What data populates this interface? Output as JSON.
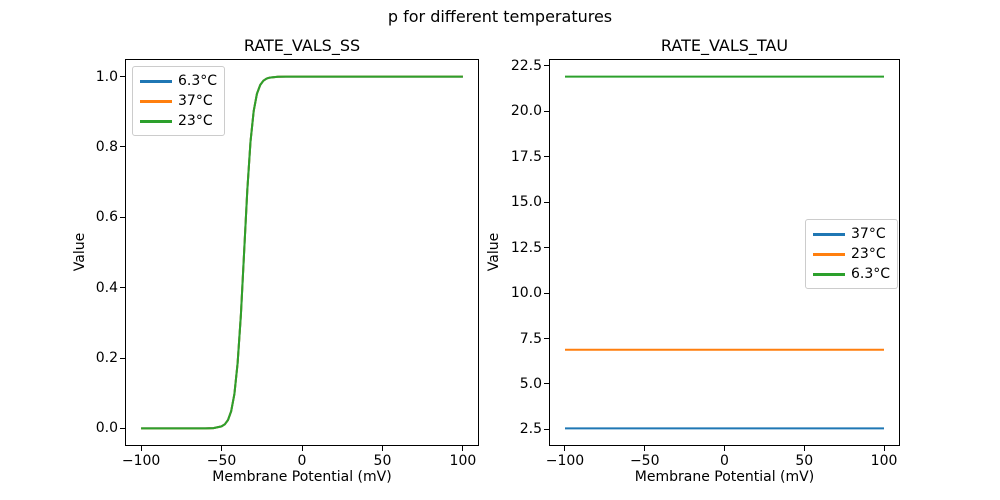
{
  "figure": {
    "suptitle": "p for different temperatures",
    "background_color": "#ffffff",
    "text_color": "#000000"
  },
  "chart_data": [
    {
      "id": "rate_vals_ss",
      "type": "line",
      "title": "RATE_VALS_SS",
      "xlabel": "Membrane Potential (mV)",
      "ylabel": "Value",
      "xlim": [
        -110,
        110
      ],
      "ylim": [
        -0.05,
        1.05
      ],
      "grid": false,
      "xticks": [
        -100,
        -50,
        0,
        50,
        100
      ],
      "xtick_labels": [
        "−100",
        "−50",
        "0",
        "50",
        "100"
      ],
      "yticks": [
        0.0,
        0.2,
        0.4,
        0.6,
        0.8,
        1.0
      ],
      "ytick_labels": [
        "0.0",
        "0.2",
        "0.4",
        "0.6",
        "0.8",
        "1.0"
      ],
      "legend": {
        "position": "upper left",
        "entries": [
          {
            "label": "6.3°C",
            "color": "#1f77b4"
          },
          {
            "label": "37°C",
            "color": "#ff7f0e"
          },
          {
            "label": "23°C",
            "color": "#2ca02c"
          }
        ]
      },
      "series": [
        {
          "name": "6.3°C",
          "color": "#1f77b4",
          "x": [
            -100,
            -90,
            -80,
            -70,
            -60,
            -55,
            -50,
            -48,
            -46,
            -44,
            -42,
            -40,
            -38,
            -36,
            -34,
            -32,
            -30,
            -28,
            -26,
            -24,
            -22,
            -20,
            -15,
            -10,
            -5,
            0,
            20,
            40,
            60,
            80,
            100
          ],
          "y": [
            0,
            0,
            0,
            0,
            0.0001,
            0.0009,
            0.0056,
            0.0116,
            0.024,
            0.0491,
            0.0978,
            0.1852,
            0.3229,
            0.5,
            0.6771,
            0.8148,
            0.9022,
            0.9509,
            0.976,
            0.9884,
            0.9943,
            0.9972,
            0.9996,
            0.9999,
            1,
            1,
            1,
            1,
            1,
            1,
            1
          ]
        },
        {
          "name": "37°C",
          "color": "#ff7f0e",
          "x": [
            -100,
            -90,
            -80,
            -70,
            -60,
            -55,
            -50,
            -48,
            -46,
            -44,
            -42,
            -40,
            -38,
            -36,
            -34,
            -32,
            -30,
            -28,
            -26,
            -24,
            -22,
            -20,
            -15,
            -10,
            -5,
            0,
            20,
            40,
            60,
            80,
            100
          ],
          "y": [
            0,
            0,
            0,
            0,
            0.0001,
            0.0009,
            0.0056,
            0.0116,
            0.024,
            0.0491,
            0.0978,
            0.1852,
            0.3229,
            0.5,
            0.6771,
            0.8148,
            0.9022,
            0.9509,
            0.976,
            0.9884,
            0.9943,
            0.9972,
            0.9996,
            0.9999,
            1,
            1,
            1,
            1,
            1,
            1,
            1
          ]
        },
        {
          "name": "23°C",
          "color": "#2ca02c",
          "x": [
            -100,
            -90,
            -80,
            -70,
            -60,
            -55,
            -50,
            -48,
            -46,
            -44,
            -42,
            -40,
            -38,
            -36,
            -34,
            -32,
            -30,
            -28,
            -26,
            -24,
            -22,
            -20,
            -15,
            -10,
            -5,
            0,
            20,
            40,
            60,
            80,
            100
          ],
          "y": [
            0,
            0,
            0,
            0,
            0.0001,
            0.0009,
            0.0056,
            0.0116,
            0.024,
            0.0491,
            0.0978,
            0.1852,
            0.3229,
            0.5,
            0.6771,
            0.8148,
            0.9022,
            0.9509,
            0.976,
            0.9884,
            0.9943,
            0.9972,
            0.9996,
            0.9999,
            1,
            1,
            1,
            1,
            1,
            1,
            1
          ]
        }
      ]
    },
    {
      "id": "rate_vals_tau",
      "type": "line",
      "title": "RATE_VALS_TAU",
      "xlabel": "Membrane Potential (mV)",
      "ylabel": "Value",
      "xlim": [
        -110,
        110
      ],
      "ylim": [
        1.59,
        22.87
      ],
      "grid": false,
      "xticks": [
        -100,
        -50,
        0,
        50,
        100
      ],
      "xtick_labels": [
        "−100",
        "−50",
        "0",
        "50",
        "100"
      ],
      "yticks": [
        2.5,
        5.0,
        7.5,
        10.0,
        12.5,
        15.0,
        17.5,
        20.0,
        22.5
      ],
      "ytick_labels": [
        "2.5",
        "5.0",
        "7.5",
        "10.0",
        "12.5",
        "15.0",
        "17.5",
        "20.0",
        "22.5"
      ],
      "legend": {
        "position": "center right",
        "entries": [
          {
            "label": "37°C",
            "color": "#1f77b4"
          },
          {
            "label": "23°C",
            "color": "#ff7f0e"
          },
          {
            "label": "6.3°C",
            "color": "#2ca02c"
          }
        ]
      },
      "series": [
        {
          "name": "37°C",
          "color": "#1f77b4",
          "x": [
            -100,
            100
          ],
          "y": [
            2.56,
            2.56
          ]
        },
        {
          "name": "23°C",
          "color": "#ff7f0e",
          "x": [
            -100,
            100
          ],
          "y": [
            6.88,
            6.88
          ]
        },
        {
          "name": "6.3°C",
          "color": "#2ca02c",
          "x": [
            -100,
            100
          ],
          "y": [
            21.9,
            21.9
          ]
        }
      ]
    }
  ]
}
